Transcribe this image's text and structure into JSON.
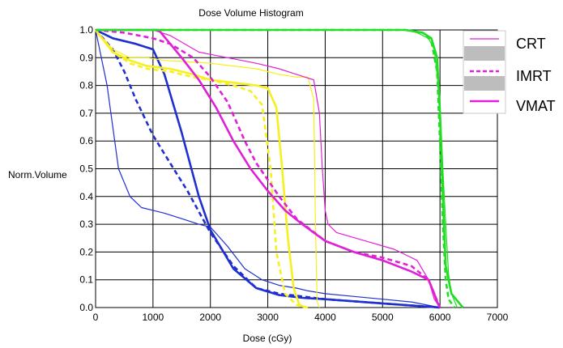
{
  "chart_data": {
    "type": "line",
    "title": "Dose Volume Histogram",
    "xlabel": "Dose (cGy)",
    "ylabel": "Norm.Volume",
    "xlim": [
      0,
      7000
    ],
    "ylim": [
      0,
      1.0
    ],
    "x_ticks": [
      "0",
      "1000",
      "2000",
      "3000",
      "4000",
      "5000",
      "6000",
      "7000"
    ],
    "y_ticks": [
      "0.0",
      "0.1",
      "0.2",
      "0.3",
      "0.4",
      "0.5",
      "0.6",
      "0.7",
      "0.8",
      "0.9",
      "1.0"
    ],
    "grid": true,
    "legend_position": "top-right",
    "legend": [
      {
        "label": "CRT",
        "style": "thin-solid"
      },
      {
        "label": "IMRT",
        "style": "dashed"
      },
      {
        "label": "VMAT",
        "style": "thick-solid"
      }
    ],
    "colors": {
      "blue": "#1f2fd0",
      "yellow": "#f7f01e",
      "magenta": "#e020d8",
      "green": "#22dd22"
    },
    "series": [
      {
        "color": "blue",
        "style": "thin-solid",
        "x": [
          0,
          200,
          400,
          600,
          800,
          1000,
          1200,
          1500,
          1800,
          2000,
          2300,
          2600,
          2900,
          3200,
          3500,
          3700,
          4000,
          4500,
          5000,
          5500,
          6000
        ],
        "y": [
          1.0,
          0.8,
          0.5,
          0.4,
          0.36,
          0.35,
          0.34,
          0.32,
          0.3,
          0.29,
          0.22,
          0.14,
          0.1,
          0.08,
          0.07,
          0.06,
          0.05,
          0.04,
          0.03,
          0.02,
          0.0
        ]
      },
      {
        "color": "blue",
        "style": "dashed",
        "x": [
          0,
          300,
          500,
          700,
          1000,
          1300,
          1600,
          2000,
          2400,
          2800,
          3200,
          3600,
          4000,
          5000,
          6000
        ],
        "y": [
          1.0,
          0.93,
          0.85,
          0.75,
          0.62,
          0.52,
          0.42,
          0.27,
          0.15,
          0.07,
          0.05,
          0.04,
          0.03,
          0.015,
          0.0
        ]
      },
      {
        "color": "blue",
        "style": "thick-solid",
        "x": [
          0,
          300,
          700,
          1000,
          1200,
          1500,
          1800,
          2000,
          2400,
          2800,
          3200,
          3600,
          4000,
          5000,
          6000
        ],
        "y": [
          1.0,
          0.97,
          0.95,
          0.93,
          0.84,
          0.63,
          0.4,
          0.28,
          0.14,
          0.07,
          0.045,
          0.035,
          0.03,
          0.015,
          0.0
        ]
      },
      {
        "color": "yellow",
        "style": "thin-solid",
        "x": [
          0,
          300,
          600,
          900,
          1200,
          1600,
          2000,
          2400,
          2800,
          3200,
          3500,
          3700,
          3800,
          3830,
          3860,
          3900
        ],
        "y": [
          1.0,
          0.93,
          0.9,
          0.9,
          0.89,
          0.885,
          0.88,
          0.87,
          0.86,
          0.84,
          0.83,
          0.83,
          0.75,
          0.3,
          0.02,
          0.0
        ]
      },
      {
        "color": "yellow",
        "style": "dashed",
        "x": [
          0,
          300,
          600,
          900,
          1300,
          1700,
          2000,
          2400,
          2700,
          2900,
          3050,
          3150,
          3300,
          3500,
          3700
        ],
        "y": [
          1.0,
          0.92,
          0.88,
          0.86,
          0.85,
          0.83,
          0.82,
          0.8,
          0.78,
          0.73,
          0.5,
          0.2,
          0.05,
          0.01,
          0.0
        ]
      },
      {
        "color": "yellow",
        "style": "thick-solid",
        "x": [
          0,
          300,
          600,
          900,
          1300,
          1700,
          2000,
          2400,
          2800,
          3000,
          3150,
          3250,
          3350,
          3450,
          3550,
          3650
        ],
        "y": [
          1.0,
          0.92,
          0.89,
          0.87,
          0.86,
          0.84,
          0.82,
          0.81,
          0.8,
          0.79,
          0.72,
          0.5,
          0.25,
          0.07,
          0.01,
          0.0
        ]
      },
      {
        "color": "magenta",
        "style": "thin-solid",
        "x": [
          0,
          1000,
          1300,
          1800,
          2300,
          2800,
          3200,
          3500,
          3800,
          3900,
          3950,
          4000,
          4050,
          4200,
          4700,
          5200,
          5600,
          5800,
          5900,
          6000
        ],
        "y": [
          1.0,
          1.0,
          0.98,
          0.92,
          0.9,
          0.88,
          0.86,
          0.84,
          0.82,
          0.7,
          0.5,
          0.35,
          0.3,
          0.27,
          0.24,
          0.21,
          0.17,
          0.1,
          0.03,
          0.0
        ]
      },
      {
        "color": "magenta",
        "style": "dashed",
        "x": [
          0,
          500,
          1000,
          1300,
          1700,
          2000,
          2300,
          2600,
          2800,
          3000,
          3200,
          3500,
          4000,
          4500,
          5000,
          5500,
          5800,
          5900,
          6000
        ],
        "y": [
          1.0,
          0.99,
          0.97,
          0.95,
          0.9,
          0.83,
          0.74,
          0.6,
          0.52,
          0.46,
          0.4,
          0.32,
          0.24,
          0.2,
          0.18,
          0.15,
          0.1,
          0.05,
          0.0
        ]
      },
      {
        "color": "magenta",
        "style": "thick-solid",
        "x": [
          0,
          1100,
          1300,
          1500,
          1800,
          2100,
          2400,
          2700,
          3000,
          3300,
          3600,
          4000,
          4500,
          5000,
          5500,
          5800,
          5900,
          5950,
          6000
        ],
        "y": [
          1.0,
          1.0,
          0.95,
          0.9,
          0.82,
          0.72,
          0.6,
          0.5,
          0.42,
          0.35,
          0.3,
          0.24,
          0.2,
          0.17,
          0.13,
          0.1,
          0.05,
          0.02,
          0.0
        ]
      },
      {
        "color": "green",
        "style": "thin-solid",
        "x": [
          0,
          5400,
          5600,
          5800,
          5900,
          6000,
          6050,
          6100,
          6150,
          6200,
          6300
        ],
        "y": [
          1.0,
          1.0,
          0.99,
          0.97,
          0.93,
          0.75,
          0.5,
          0.3,
          0.12,
          0.05,
          0.0
        ]
      },
      {
        "color": "green",
        "style": "dashed",
        "x": [
          0,
          5400,
          5700,
          5850,
          5950,
          6000,
          6050,
          6100,
          6150,
          6250
        ],
        "y": [
          1.0,
          1.0,
          0.99,
          0.96,
          0.85,
          0.6,
          0.3,
          0.1,
          0.03,
          0.0
        ]
      },
      {
        "color": "green",
        "style": "thick-solid",
        "x": [
          0,
          5400,
          5700,
          5850,
          5950,
          6000,
          6050,
          6100,
          6200,
          6400
        ],
        "y": [
          1.0,
          1.0,
          0.99,
          0.97,
          0.9,
          0.7,
          0.4,
          0.15,
          0.05,
          0.0
        ]
      }
    ]
  }
}
